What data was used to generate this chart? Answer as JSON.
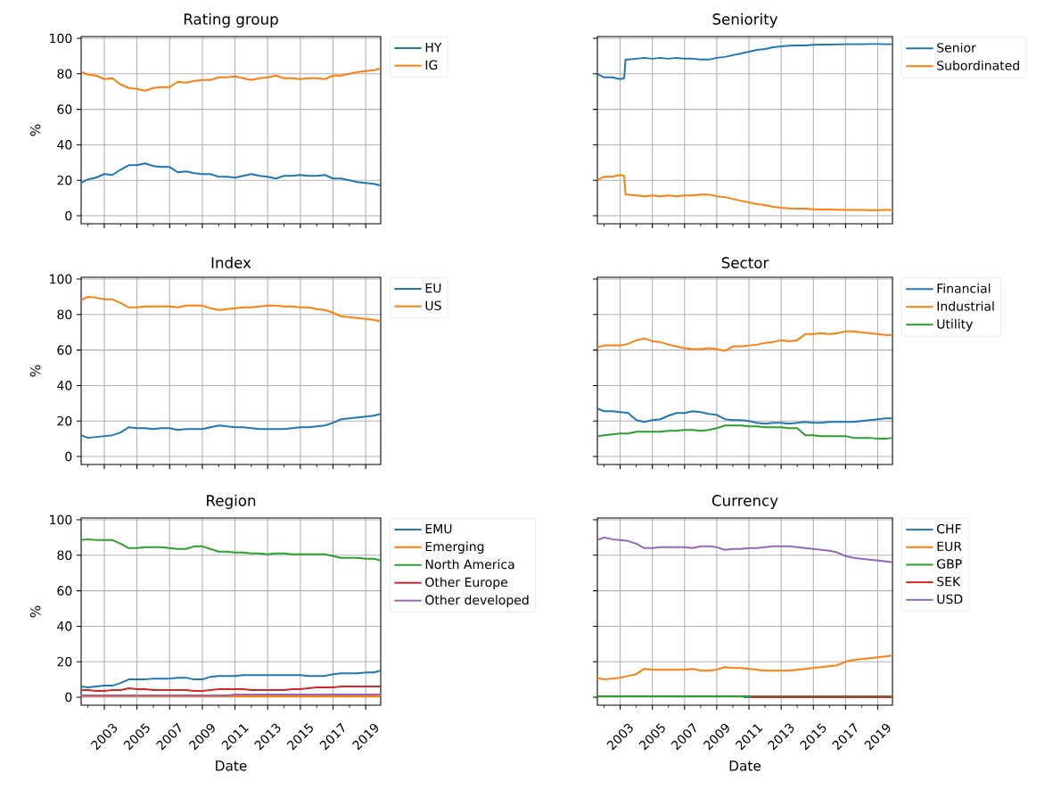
{
  "chart_data": [
    {
      "type": "line",
      "title": "Rating group",
      "ylabel": "%",
      "legend": "right",
      "grid": true,
      "tick_labels": "y",
      "x": [
        "2001-08",
        "2002-01",
        "2002-07",
        "2003-01",
        "2003-07",
        "2004-01",
        "2004-07",
        "2005-01",
        "2005-07",
        "2006-01",
        "2006-07",
        "2007-01",
        "2007-07",
        "2008-01",
        "2008-07",
        "2009-01",
        "2009-07",
        "2010-01",
        "2010-07",
        "2011-01",
        "2011-07",
        "2012-01",
        "2012-07",
        "2013-01",
        "2013-07",
        "2014-01",
        "2014-07",
        "2015-01",
        "2015-07",
        "2016-01",
        "2016-07",
        "2017-01",
        "2017-07",
        "2018-01",
        "2018-07",
        "2019-01",
        "2019-07",
        "2019-12"
      ],
      "xlim": [
        "2001-08",
        "2019-12"
      ],
      "ylim": [
        -4.5,
        101
      ],
      "xticks": [
        {
          "value": "2002",
          "label": null
        },
        "2003",
        {
          "value": "2004",
          "label": null
        },
        "2005",
        {
          "value": "2006",
          "label": null
        },
        "2007",
        {
          "value": "2008",
          "label": null
        },
        "2009",
        {
          "value": "2010",
          "label": null
        },
        "2011",
        {
          "value": "2012",
          "label": null
        },
        "2013",
        {
          "value": "2014",
          "label": null
        },
        "2015",
        {
          "value": "2016",
          "label": null
        },
        "2017",
        {
          "value": "2018",
          "label": null
        },
        "2019"
      ],
      "yticks": [
        0,
        20,
        40,
        60,
        80,
        100
      ],
      "series": [
        {
          "name": "HY",
          "color": "#1f77b4",
          "values": [
            18.5,
            20.5,
            21.5,
            23.5,
            23,
            26,
            28.5,
            28.5,
            29.5,
            28,
            27.5,
            27.5,
            24.5,
            25,
            24,
            23.5,
            23.5,
            22,
            22,
            21.5,
            22.5,
            23.5,
            22.5,
            22,
            21,
            22.5,
            22.5,
            23,
            22.5,
            22.5,
            23,
            21,
            21,
            20,
            19,
            18.5,
            18,
            17
          ]
        },
        {
          "name": "IG",
          "color": "#ff7f0e",
          "values": [
            81,
            79.5,
            79,
            77,
            77.5,
            74,
            72,
            71.5,
            70.5,
            72,
            72.5,
            72.5,
            75.5,
            75,
            76,
            76.5,
            76.5,
            78,
            78,
            78.5,
            77.5,
            76.5,
            77.5,
            78,
            79,
            77.5,
            77.5,
            77,
            77.5,
            77.5,
            77,
            79,
            79,
            80,
            81,
            81.5,
            82,
            83
          ]
        }
      ]
    },
    {
      "type": "line",
      "title": "Seniority",
      "legend": "right",
      "grid": true,
      "tick_labels": false,
      "x": [
        "2001-08",
        "2002-01",
        "2002-07",
        "2003-01",
        "2003-04",
        "2003-05",
        "2003-07",
        "2004-01",
        "2004-07",
        "2005-01",
        "2005-07",
        "2006-01",
        "2006-07",
        "2007-01",
        "2007-07",
        "2008-01",
        "2008-07",
        "2009-01",
        "2009-07",
        "2010-01",
        "2010-07",
        "2011-01",
        "2011-07",
        "2012-01",
        "2012-07",
        "2013-01",
        "2013-07",
        "2014-01",
        "2014-07",
        "2015-01",
        "2015-07",
        "2016-01",
        "2016-07",
        "2017-01",
        "2017-07",
        "2018-01",
        "2018-07",
        "2019-01",
        "2019-07",
        "2019-12"
      ],
      "xlim": [
        "2001-08",
        "2019-12"
      ],
      "ylim": [
        -4.5,
        101
      ],
      "xticks": [
        {
          "value": "2002",
          "label": null
        },
        "2003",
        {
          "value": "2004",
          "label": null
        },
        "2005",
        {
          "value": "2006",
          "label": null
        },
        "2007",
        {
          "value": "2008",
          "label": null
        },
        "2009",
        {
          "value": "2010",
          "label": null
        },
        "2011",
        {
          "value": "2012",
          "label": null
        },
        "2013",
        {
          "value": "2014",
          "label": null
        },
        "2015",
        {
          "value": "2016",
          "label": null
        },
        "2017",
        {
          "value": "2018",
          "label": null
        },
        "2019"
      ],
      "yticks": [
        0,
        20,
        40,
        60,
        80,
        100
      ],
      "series": [
        {
          "name": "Senior",
          "color": "#1f77b4",
          "values": [
            80,
            78,
            78,
            77,
            77.5,
            88,
            88,
            88.5,
            89,
            88.5,
            89,
            88.5,
            89,
            88.5,
            88.5,
            88,
            88,
            89,
            89.5,
            90.5,
            91.5,
            92.5,
            93.5,
            94,
            95,
            95.5,
            95.8,
            96,
            96,
            96.3,
            96.5,
            96.5,
            96.6,
            96.7,
            96.7,
            96.7,
            96.8,
            96.8,
            96.7,
            96.7
          ]
        },
        {
          "name": "Subordinated",
          "color": "#ff7f0e",
          "values": [
            20,
            22,
            22,
            23,
            22.5,
            12,
            12,
            11.5,
            11,
            11.5,
            11,
            11.5,
            11,
            11.5,
            11.5,
            12,
            12,
            11,
            10.5,
            9.5,
            8.5,
            7.5,
            6.5,
            6,
            5,
            4.5,
            4.2,
            4,
            4,
            3.7,
            3.5,
            3.5,
            3.4,
            3.3,
            3.3,
            3.3,
            3.2,
            3.2,
            3.3,
            3.3
          ]
        }
      ]
    },
    {
      "type": "line",
      "title": "Index",
      "ylabel": "%",
      "legend": "right",
      "grid": true,
      "tick_labels": "y",
      "x": [
        "2001-08",
        "2002-01",
        "2002-07",
        "2003-01",
        "2003-07",
        "2004-01",
        "2004-07",
        "2005-01",
        "2005-07",
        "2006-01",
        "2006-07",
        "2007-01",
        "2007-07",
        "2008-01",
        "2008-07",
        "2009-01",
        "2009-07",
        "2010-01",
        "2010-07",
        "2011-01",
        "2011-07",
        "2012-01",
        "2012-07",
        "2013-01",
        "2013-07",
        "2014-01",
        "2014-07",
        "2015-01",
        "2015-07",
        "2016-01",
        "2016-07",
        "2017-01",
        "2017-07",
        "2018-01",
        "2018-07",
        "2019-01",
        "2019-07",
        "2019-12"
      ],
      "xlim": [
        "2001-08",
        "2019-12"
      ],
      "ylim": [
        -4.5,
        101
      ],
      "xticks": [
        {
          "value": "2002",
          "label": null
        },
        "2003",
        {
          "value": "2004",
          "label": null
        },
        "2005",
        {
          "value": "2006",
          "label": null
        },
        "2007",
        {
          "value": "2008",
          "label": null
        },
        "2009",
        {
          "value": "2010",
          "label": null
        },
        "2011",
        {
          "value": "2012",
          "label": null
        },
        "2013",
        {
          "value": "2014",
          "label": null
        },
        "2015",
        {
          "value": "2016",
          "label": null
        },
        "2017",
        {
          "value": "2018",
          "label": null
        },
        "2019"
      ],
      "yticks": [
        0,
        20,
        40,
        60,
        80,
        100
      ],
      "series": [
        {
          "name": "EU",
          "color": "#1f77b4",
          "values": [
            12,
            10.5,
            11,
            11.5,
            12,
            13.5,
            16.5,
            16,
            16,
            15.5,
            16,
            16,
            15,
            15.5,
            15.5,
            15.5,
            16.5,
            17.5,
            17,
            16.5,
            16.5,
            16,
            15.5,
            15.5,
            15.5,
            15.5,
            16,
            16.5,
            16.5,
            17,
            17.5,
            19,
            21,
            21.5,
            22,
            22.5,
            23,
            24
          ]
        },
        {
          "name": "US",
          "color": "#ff7f0e",
          "values": [
            88,
            90,
            89.5,
            88.5,
            88.5,
            86.5,
            84,
            84,
            84.5,
            84.5,
            84.5,
            84.5,
            84,
            85,
            85,
            85,
            83.5,
            82.5,
            83,
            83.5,
            84,
            84,
            84.5,
            85,
            85,
            84.5,
            84.5,
            84,
            84,
            83,
            82.5,
            81,
            79,
            78.5,
            78,
            77.5,
            77,
            76
          ]
        }
      ]
    },
    {
      "type": "line",
      "title": "Sector",
      "legend": "right",
      "grid": true,
      "tick_labels": false,
      "x": [
        "2001-08",
        "2002-01",
        "2002-07",
        "2003-01",
        "2003-07",
        "2004-01",
        "2004-07",
        "2005-01",
        "2005-07",
        "2006-01",
        "2006-07",
        "2007-01",
        "2007-07",
        "2008-01",
        "2008-07",
        "2009-01",
        "2009-07",
        "2010-01",
        "2010-07",
        "2011-01",
        "2011-07",
        "2012-01",
        "2012-07",
        "2013-01",
        "2013-07",
        "2014-01",
        "2014-07",
        "2015-01",
        "2015-07",
        "2016-01",
        "2016-07",
        "2017-01",
        "2017-07",
        "2018-01",
        "2018-07",
        "2019-01",
        "2019-07",
        "2019-12"
      ],
      "xlim": [
        "2001-08",
        "2019-12"
      ],
      "ylim": [
        -4.5,
        101
      ],
      "xticks": [
        {
          "value": "2002",
          "label": null
        },
        "2003",
        {
          "value": "2004",
          "label": null
        },
        "2005",
        {
          "value": "2006",
          "label": null
        },
        "2007",
        {
          "value": "2008",
          "label": null
        },
        "2009",
        {
          "value": "2010",
          "label": null
        },
        "2011",
        {
          "value": "2012",
          "label": null
        },
        "2013",
        {
          "value": "2014",
          "label": null
        },
        "2015",
        {
          "value": "2016",
          "label": null
        },
        "2017",
        {
          "value": "2018",
          "label": null
        },
        "2019"
      ],
      "yticks": [
        0,
        20,
        40,
        60,
        80,
        100
      ],
      "series": [
        {
          "name": "Financial",
          "color": "#1f77b4",
          "values": [
            27,
            25.5,
            25.5,
            25,
            24.5,
            20.5,
            19.5,
            20.5,
            21,
            23,
            24.5,
            24.5,
            25.5,
            25,
            24,
            23.5,
            21,
            20.5,
            20.5,
            20,
            19,
            18.5,
            19,
            19,
            18.5,
            19,
            19.5,
            19,
            19,
            19.5,
            19.5,
            19.5,
            19.5,
            20,
            20.5,
            21,
            21.5,
            21.5
          ]
        },
        {
          "name": "Industrial",
          "color": "#ff7f0e",
          "values": [
            61.5,
            62.5,
            62.5,
            62.5,
            63.5,
            65.5,
            66.5,
            65,
            64.5,
            63,
            62,
            61,
            60.5,
            60.5,
            61,
            60.5,
            59.5,
            62,
            62,
            62.5,
            63,
            64,
            64.5,
            65.5,
            65,
            65.5,
            69,
            69,
            69.5,
            69,
            69.5,
            70.5,
            70.5,
            70,
            69.5,
            69,
            68.5,
            68.5
          ]
        },
        {
          "name": "Utility",
          "color": "#2ca02c",
          "values": [
            11.5,
            12,
            12.5,
            13,
            13,
            14,
            14,
            14,
            14,
            14.5,
            14.5,
            15,
            15,
            14.5,
            15,
            16,
            17.5,
            17.5,
            17.5,
            17,
            17,
            16.5,
            16.5,
            16.5,
            16,
            16,
            12,
            12,
            11.5,
            11.5,
            11.5,
            11.5,
            10.5,
            10.5,
            10.5,
            10,
            10,
            10.5
          ]
        }
      ]
    },
    {
      "type": "line",
      "title": "Region",
      "xlabel": "Date",
      "ylabel": "%",
      "legend": "right",
      "grid": true,
      "x": [
        "2001-08",
        "2002-01",
        "2002-07",
        "2003-01",
        "2003-07",
        "2004-01",
        "2004-07",
        "2005-01",
        "2005-07",
        "2006-01",
        "2006-07",
        "2007-01",
        "2007-07",
        "2008-01",
        "2008-07",
        "2009-01",
        "2009-07",
        "2010-01",
        "2010-07",
        "2011-01",
        "2011-07",
        "2012-01",
        "2012-07",
        "2013-01",
        "2013-07",
        "2014-01",
        "2014-07",
        "2015-01",
        "2015-07",
        "2016-01",
        "2016-07",
        "2017-01",
        "2017-07",
        "2018-01",
        "2018-07",
        "2019-01",
        "2019-07",
        "2019-12"
      ],
      "xlim": [
        "2001-08",
        "2019-12"
      ],
      "ylim": [
        -4.5,
        101
      ],
      "xticks": [
        {
          "value": "2002",
          "label": null
        },
        "2003",
        {
          "value": "2004",
          "label": null
        },
        "2005",
        {
          "value": "2006",
          "label": null
        },
        "2007",
        {
          "value": "2008",
          "label": null
        },
        "2009",
        {
          "value": "2010",
          "label": null
        },
        "2011",
        {
          "value": "2012",
          "label": null
        },
        "2013",
        {
          "value": "2014",
          "label": null
        },
        "2015",
        {
          "value": "2016",
          "label": null
        },
        "2017",
        {
          "value": "2018",
          "label": null
        },
        "2019"
      ],
      "yticks": [
        0,
        20,
        40,
        60,
        80,
        100
      ],
      "series": [
        {
          "name": "EMU",
          "color": "#1f77b4",
          "values": [
            6,
            5.5,
            6,
            6.5,
            6.5,
            8,
            10,
            10,
            10,
            10.5,
            10.5,
            10.5,
            11,
            11,
            10,
            10,
            11.5,
            12,
            12,
            12,
            12.5,
            12.5,
            12.5,
            12.5,
            12.5,
            12.5,
            12.5,
            12.5,
            12,
            12,
            12,
            13,
            13.5,
            13.5,
            13.5,
            14,
            14,
            15
          ]
        },
        {
          "name": "Emerging",
          "color": "#ff7f0e",
          "values": [
            0.5,
            0.5,
            0.5,
            0.5,
            0.5,
            0.5,
            0.5,
            0.5,
            0.5,
            0.5,
            0.5,
            0.5,
            0.5,
            0.5,
            0.5,
            0.5,
            0.5,
            0.5,
            0.5,
            0.5,
            0.5,
            0.5,
            0.5,
            0.5,
            0.5,
            0.5,
            0.5,
            0.5,
            0.5,
            0.5,
            0.5,
            0.5,
            0.5,
            0.5,
            0.5,
            0.5,
            0.5,
            0.5
          ]
        },
        {
          "name": "North America",
          "color": "#2ca02c",
          "values": [
            88.5,
            89,
            88.5,
            88.5,
            88.5,
            86.5,
            84,
            84,
            84.5,
            84.5,
            84.5,
            84,
            83.5,
            83.5,
            85,
            85,
            83.5,
            82,
            82,
            81.5,
            81.5,
            81,
            81,
            80.5,
            81,
            81,
            80.5,
            80.5,
            80.5,
            80.5,
            80.5,
            79.5,
            78.5,
            78.5,
            78.5,
            78,
            78,
            77
          ]
        },
        {
          "name": "Other Europe",
          "color": "#d62728",
          "values": [
            4,
            4,
            3.5,
            3.5,
            4,
            4,
            5,
            4.5,
            4.5,
            4,
            4,
            4,
            4,
            4,
            3.5,
            3.5,
            4,
            4.5,
            4.5,
            4.5,
            4.5,
            4,
            4,
            4,
            4,
            4,
            4.5,
            4.5,
            5,
            5.5,
            5.5,
            5.5,
            6,
            6,
            6,
            6,
            6,
            6
          ]
        },
        {
          "name": "Other developed",
          "color": "#9467bd",
          "values": [
            1,
            1,
            1,
            1,
            1,
            1,
            1,
            1,
            1,
            1,
            1,
            1,
            1,
            1,
            1,
            1,
            1,
            1,
            1,
            1.5,
            1.5,
            1.5,
            1.5,
            1.5,
            1.5,
            1.5,
            1.5,
            1.5,
            1.5,
            1.5,
            1.5,
            1.5,
            1.5,
            1.5,
            1.5,
            1.5,
            1.5,
            1.5
          ]
        }
      ]
    },
    {
      "type": "line",
      "title": "Currency",
      "xlabel": "Date",
      "legend": "right",
      "grid": true,
      "tick_labels": "x",
      "x": [
        "2001-08",
        "2002-01",
        "2002-07",
        "2003-01",
        "2003-07",
        "2004-01",
        "2004-07",
        "2005-01",
        "2005-07",
        "2006-01",
        "2006-07",
        "2007-01",
        "2007-07",
        "2008-01",
        "2008-07",
        "2009-01",
        "2009-07",
        "2010-01",
        "2010-07",
        "2011-01",
        "2011-07",
        "2012-01",
        "2012-07",
        "2013-01",
        "2013-07",
        "2014-01",
        "2014-07",
        "2015-01",
        "2015-07",
        "2016-01",
        "2016-07",
        "2017-01",
        "2017-07",
        "2018-01",
        "2018-07",
        "2019-01",
        "2019-07",
        "2019-12"
      ],
      "xlim": [
        "2001-08",
        "2019-12"
      ],
      "ylim": [
        -4.5,
        101
      ],
      "xticks": [
        {
          "value": "2002",
          "label": null
        },
        "2003",
        {
          "value": "2004",
          "label": null
        },
        "2005",
        {
          "value": "2006",
          "label": null
        },
        "2007",
        {
          "value": "2008",
          "label": null
        },
        "2009",
        {
          "value": "2010",
          "label": null
        },
        "2011",
        {
          "value": "2012",
          "label": null
        },
        "2013",
        {
          "value": "2014",
          "label": null
        },
        "2015",
        {
          "value": "2016",
          "label": null
        },
        "2017",
        {
          "value": "2018",
          "label": null
        },
        "2019"
      ],
      "yticks": [
        0,
        20,
        40,
        60,
        80,
        100
      ],
      "series": [
        {
          "name": "CHF",
          "color": "#1f77b4",
          "x": [
            "2010-09",
            "2011-02"
          ],
          "values": [
            0,
            0
          ]
        },
        {
          "name": "EUR",
          "color": "#ff7f0e",
          "values": [
            11,
            10,
            10.5,
            11,
            12,
            13,
            16,
            15.5,
            15.5,
            15.5,
            15.5,
            15.5,
            16,
            15,
            15,
            15.5,
            17,
            16.5,
            16.5,
            16,
            15.5,
            15,
            15,
            15,
            15,
            15.5,
            16,
            16.5,
            17,
            17.5,
            18,
            20,
            21,
            21.5,
            22,
            22.5,
            23,
            23.5
          ]
        },
        {
          "name": "GBP",
          "color": "#2ca02c",
          "values": [
            0.5,
            0.5,
            0.5,
            0.5,
            0.5,
            0.5,
            0.5,
            0.5,
            0.5,
            0.5,
            0.5,
            0.5,
            0.5,
            0.5,
            0.5,
            0.5,
            0.5,
            0.5,
            0.5,
            0.5,
            0.5,
            0.5,
            0.5,
            0.5,
            0.5,
            0.5,
            0.5,
            0.5,
            0.5,
            0.5,
            0.5,
            0.5,
            0.5,
            0.5,
            0.5,
            0.5,
            0.5,
            0.5
          ]
        },
        {
          "name": "SEK",
          "color": "#d62728",
          "x": [
            "2011-02",
            "2019-12"
          ],
          "values": [
            0,
            0
          ]
        },
        {
          "name": "USD",
          "color": "#9467bd",
          "values": [
            88.5,
            90,
            89,
            88.5,
            88,
            86.5,
            84,
            84,
            84.5,
            84.5,
            84.5,
            84.5,
            84,
            85,
            85,
            84.5,
            83,
            83.5,
            83.5,
            84,
            84,
            84.5,
            85,
            85,
            85,
            84.5,
            84,
            83.5,
            83,
            82.5,
            81.5,
            79.5,
            78.5,
            78,
            77.5,
            77,
            76.5,
            76
          ]
        }
      ]
    }
  ]
}
